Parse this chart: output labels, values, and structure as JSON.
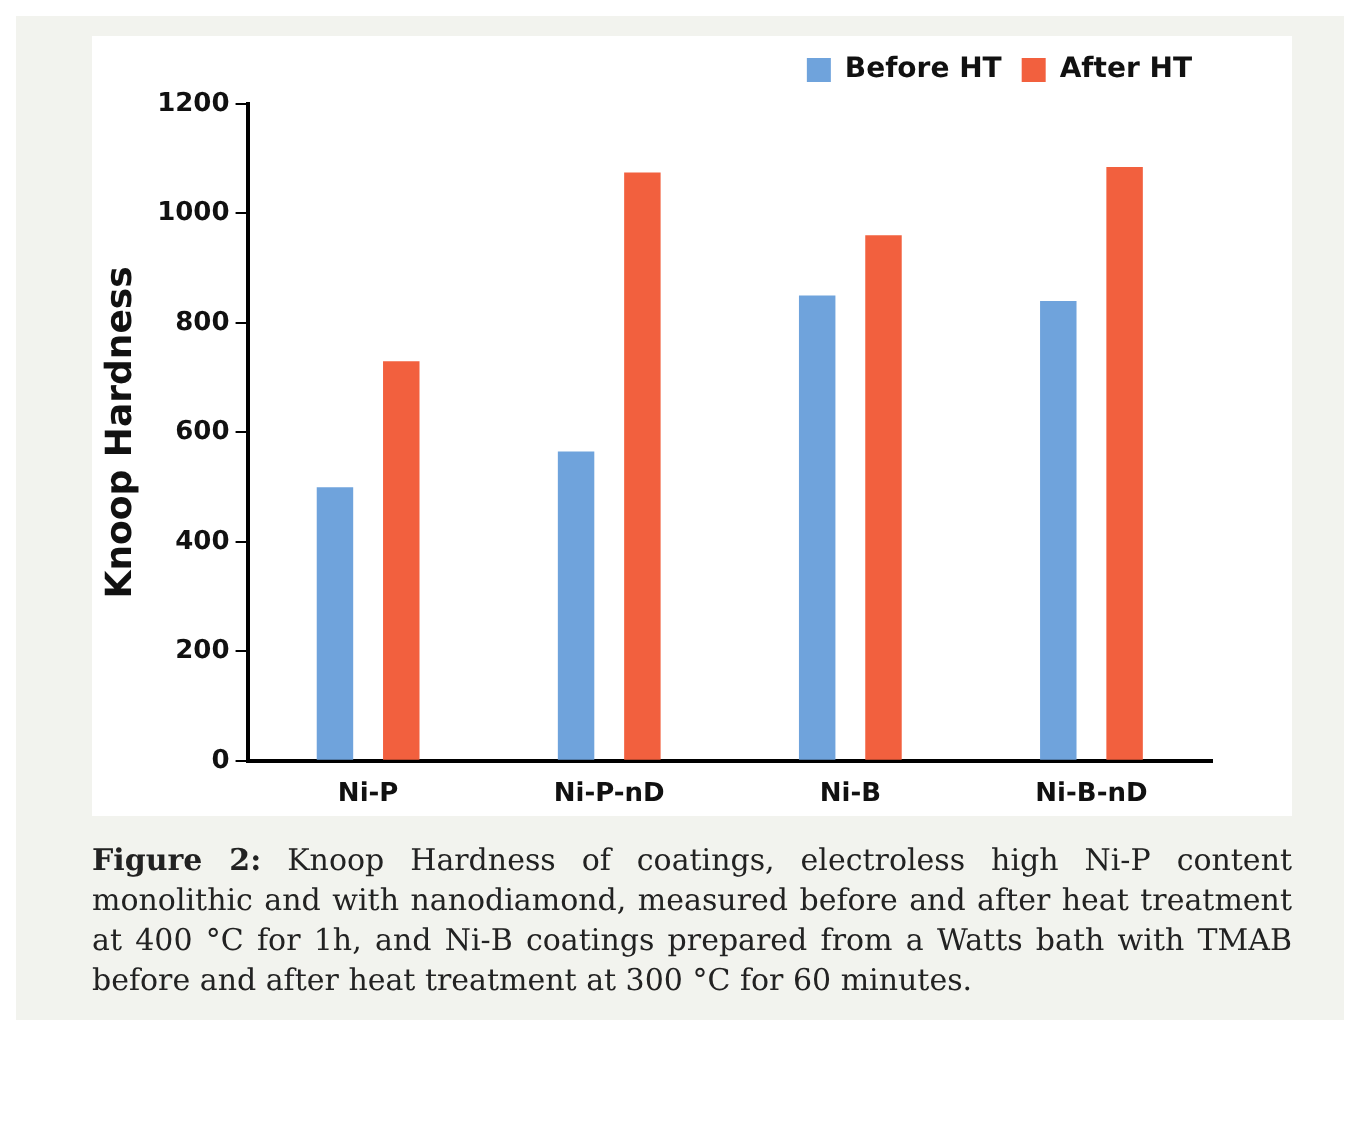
{
  "chart_data": {
    "type": "bar",
    "ylabel": "Knoop Hardness",
    "categories": [
      "Ni-P",
      "Ni-P-nD",
      "Ni-B",
      "Ni-B-nD"
    ],
    "series": [
      {
        "name": "Before HT",
        "color": "#6fa3dc",
        "values": [
          500,
          565,
          850,
          840
        ]
      },
      {
        "name": "After HT",
        "color": "#f2603e",
        "values": [
          730,
          1075,
          960,
          1085
        ]
      }
    ],
    "ylim": [
      0,
      1200
    ],
    "yticks": [
      0,
      200,
      400,
      600,
      800,
      1000,
      1200
    ],
    "grid": false,
    "legend": "top right",
    "annotations": [
      "Figure 2: Knoop Hardness of coatings, electroless high Ni-P content monolithic and with nanodiamond, measured before and after heat treatment at 400 °C for 1h, and Ni-B coatings prepared from a Watts bath with TMAB before and after heat treatment at 300 °C for 60 minutes."
    ]
  }
}
